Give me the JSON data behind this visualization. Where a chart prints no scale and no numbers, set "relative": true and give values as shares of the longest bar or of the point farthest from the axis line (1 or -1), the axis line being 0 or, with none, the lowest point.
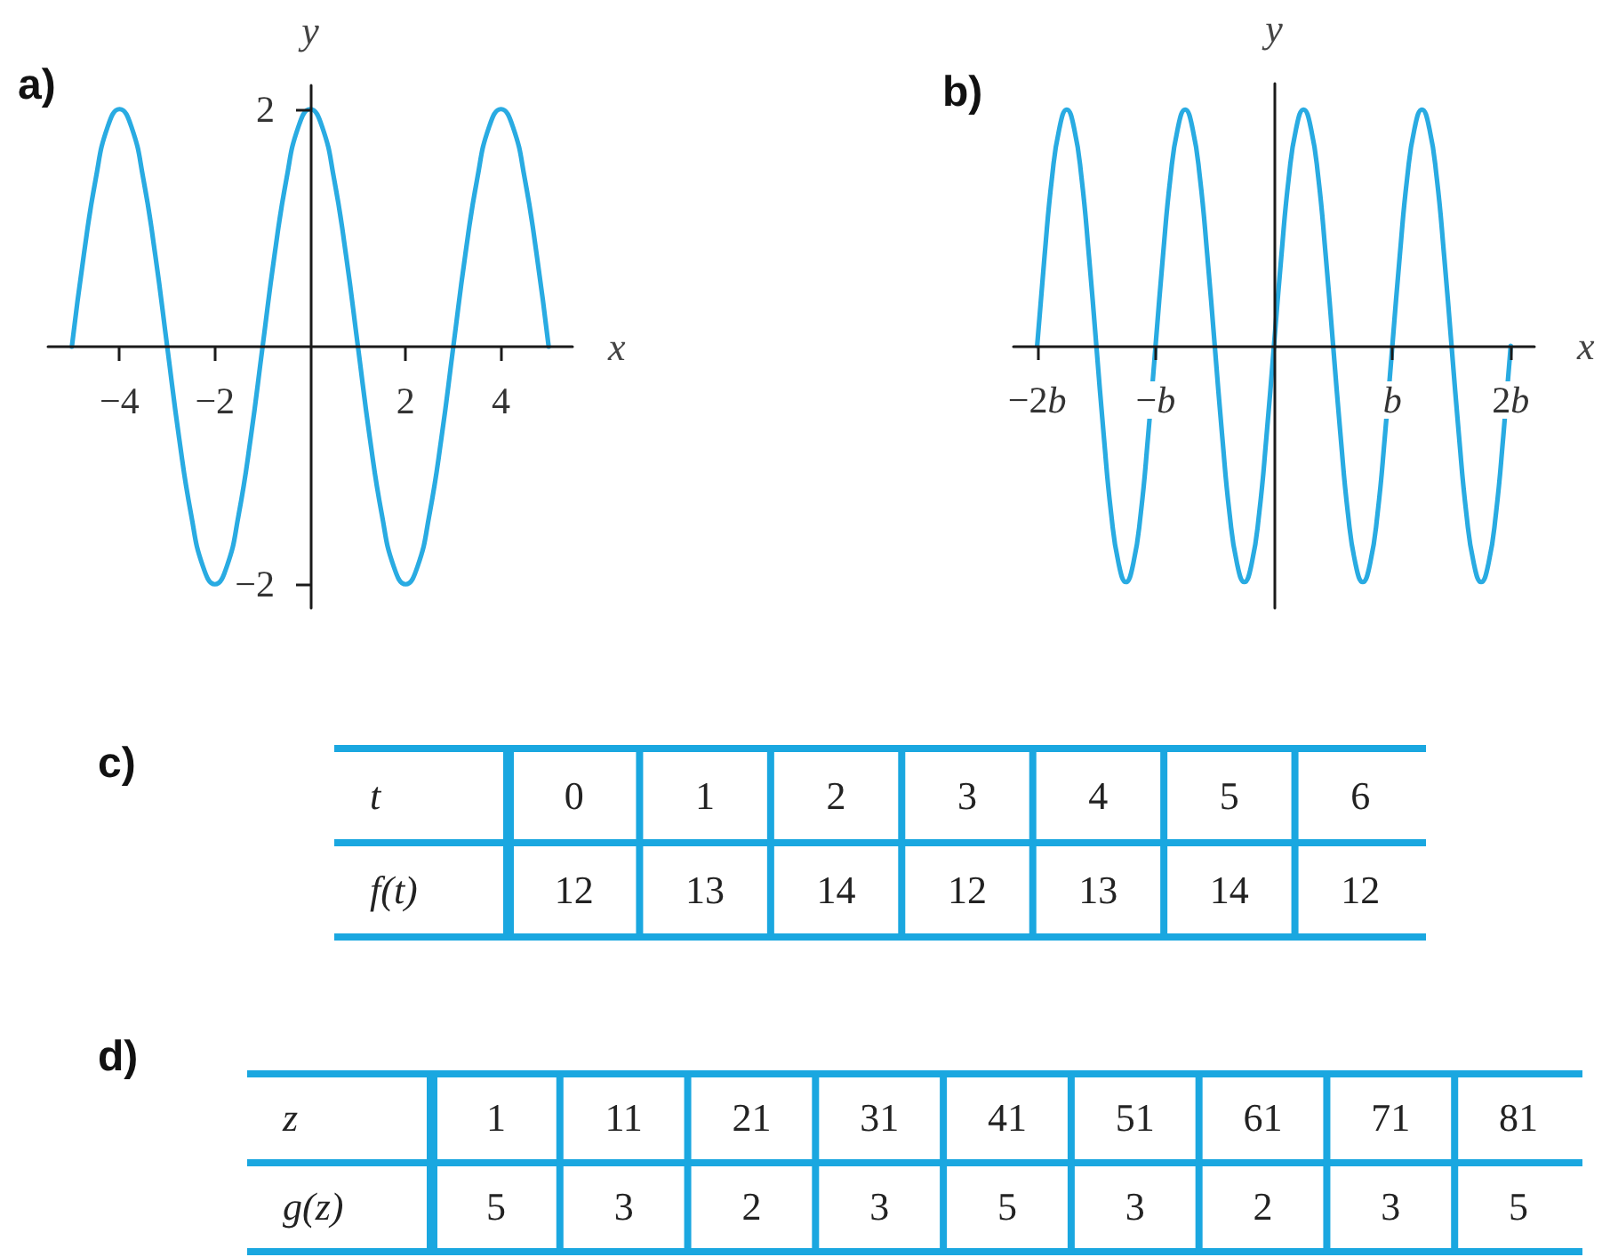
{
  "chart_data": [
    {
      "type": "line",
      "title": "a)",
      "xlabel": "x",
      "ylabel": "y",
      "xlim": [
        -5.5,
        5.5
      ],
      "ylim": [
        -2.2,
        2.2
      ],
      "xticks": [
        -4,
        -2,
        2,
        4
      ],
      "yticks": [
        -2,
        2
      ],
      "x": [
        -5,
        -4.75,
        -4.5,
        -4.25,
        -4,
        -3.75,
        -3.5,
        -3.25,
        -3,
        -2.75,
        -2.5,
        -2.25,
        -2,
        -1.75,
        -1.5,
        -1.25,
        -1,
        -0.75,
        -0.5,
        -0.25,
        0,
        0.25,
        0.5,
        0.75,
        1,
        1.25,
        1.5,
        1.75,
        2,
        2.25,
        2.5,
        2.75,
        3,
        3.25,
        3.5,
        3.75,
        4,
        4.25,
        4.5,
        4.75,
        5
      ],
      "series": [
        {
          "color": "#29abe2",
          "values": [
            0,
            0.77,
            1.41,
            1.85,
            2,
            1.85,
            1.41,
            0.77,
            0,
            -0.77,
            -1.41,
            -1.85,
            -2,
            -1.85,
            -1.41,
            -0.77,
            0,
            0.77,
            1.41,
            1.85,
            2,
            1.85,
            1.41,
            0.77,
            0,
            -0.77,
            -1.41,
            -1.85,
            -2,
            -1.85,
            -1.41,
            -0.77,
            0,
            0.77,
            1.41,
            1.85,
            2,
            1.85,
            1.41,
            0.77,
            0
          ]
        }
      ]
    },
    {
      "type": "line",
      "title": "b)",
      "xlabel": "x",
      "ylabel": "y",
      "relative": true,
      "tick_labels": "x",
      "xlim": [
        -2.2,
        2.2
      ],
      "xticks": [
        {
          "value": -2,
          "label": "−2b"
        },
        {
          "value": -1,
          "label": "−b"
        },
        {
          "value": 1,
          "label": "b"
        },
        {
          "value": 2,
          "label": "2b"
        }
      ],
      "x": [
        -2,
        -1.9375,
        -1.875,
        -1.8125,
        -1.75,
        -1.6875,
        -1.625,
        -1.5625,
        -1.5,
        -1.4375,
        -1.375,
        -1.3125,
        -1.25,
        -1.1875,
        -1.125,
        -1.0625,
        -1,
        -0.9375,
        -0.875,
        -0.8125,
        -0.75,
        -0.6875,
        -0.625,
        -0.5625,
        -0.5,
        -0.4375,
        -0.375,
        -0.3125,
        -0.25,
        -0.1875,
        -0.125,
        -0.0625,
        0,
        0.0625,
        0.125,
        0.1875,
        0.25,
        0.3125,
        0.375,
        0.4375,
        0.5,
        0.5625,
        0.625,
        0.6875,
        0.75,
        0.8125,
        0.875,
        0.9375,
        1,
        1.0625,
        1.125,
        1.1875,
        1.25,
        1.3125,
        1.375,
        1.4375,
        1.5,
        1.5625,
        1.625,
        1.6875,
        1.75,
        1.8125,
        1.875,
        1.9375,
        2
      ],
      "series": [
        {
          "color": "#29abe2",
          "values": [
            0,
            0.38,
            0.71,
            0.92,
            1,
            0.92,
            0.71,
            0.38,
            0,
            -0.38,
            -0.71,
            -0.92,
            -1,
            -0.92,
            -0.71,
            -0.38,
            0,
            0.38,
            0.71,
            0.92,
            1,
            0.92,
            0.71,
            0.38,
            0,
            -0.38,
            -0.71,
            -0.92,
            -1,
            -0.92,
            -0.71,
            -0.38,
            0,
            0.38,
            0.71,
            0.92,
            1,
            0.92,
            0.71,
            0.38,
            0,
            -0.38,
            -0.71,
            -0.92,
            -1,
            -0.92,
            -0.71,
            -0.38,
            0,
            0.38,
            0.71,
            0.92,
            1,
            0.92,
            0.71,
            0.38,
            0,
            -0.38,
            -0.71,
            -0.92,
            -1,
            -0.92,
            -0.71,
            -0.38,
            0
          ]
        }
      ]
    },
    {
      "type": "heatmap",
      "title": "c)",
      "xlabel": "t",
      "categories": [
        "0",
        "1",
        "2",
        "3",
        "4",
        "5",
        "6"
      ],
      "y_categories": [
        "f(t)"
      ],
      "cells": [
        [
          12,
          13,
          14,
          12,
          13,
          14,
          12
        ]
      ],
      "data_labels": true
    },
    {
      "type": "heatmap",
      "title": "d)",
      "xlabel": "z",
      "categories": [
        "1",
        "11",
        "21",
        "31",
        "41",
        "51",
        "61",
        "71",
        "81"
      ],
      "y_categories": [
        "g(z)"
      ],
      "cells": [
        [
          5,
          3,
          2,
          3,
          5,
          3,
          2,
          3,
          5
        ]
      ],
      "data_labels": true
    }
  ]
}
